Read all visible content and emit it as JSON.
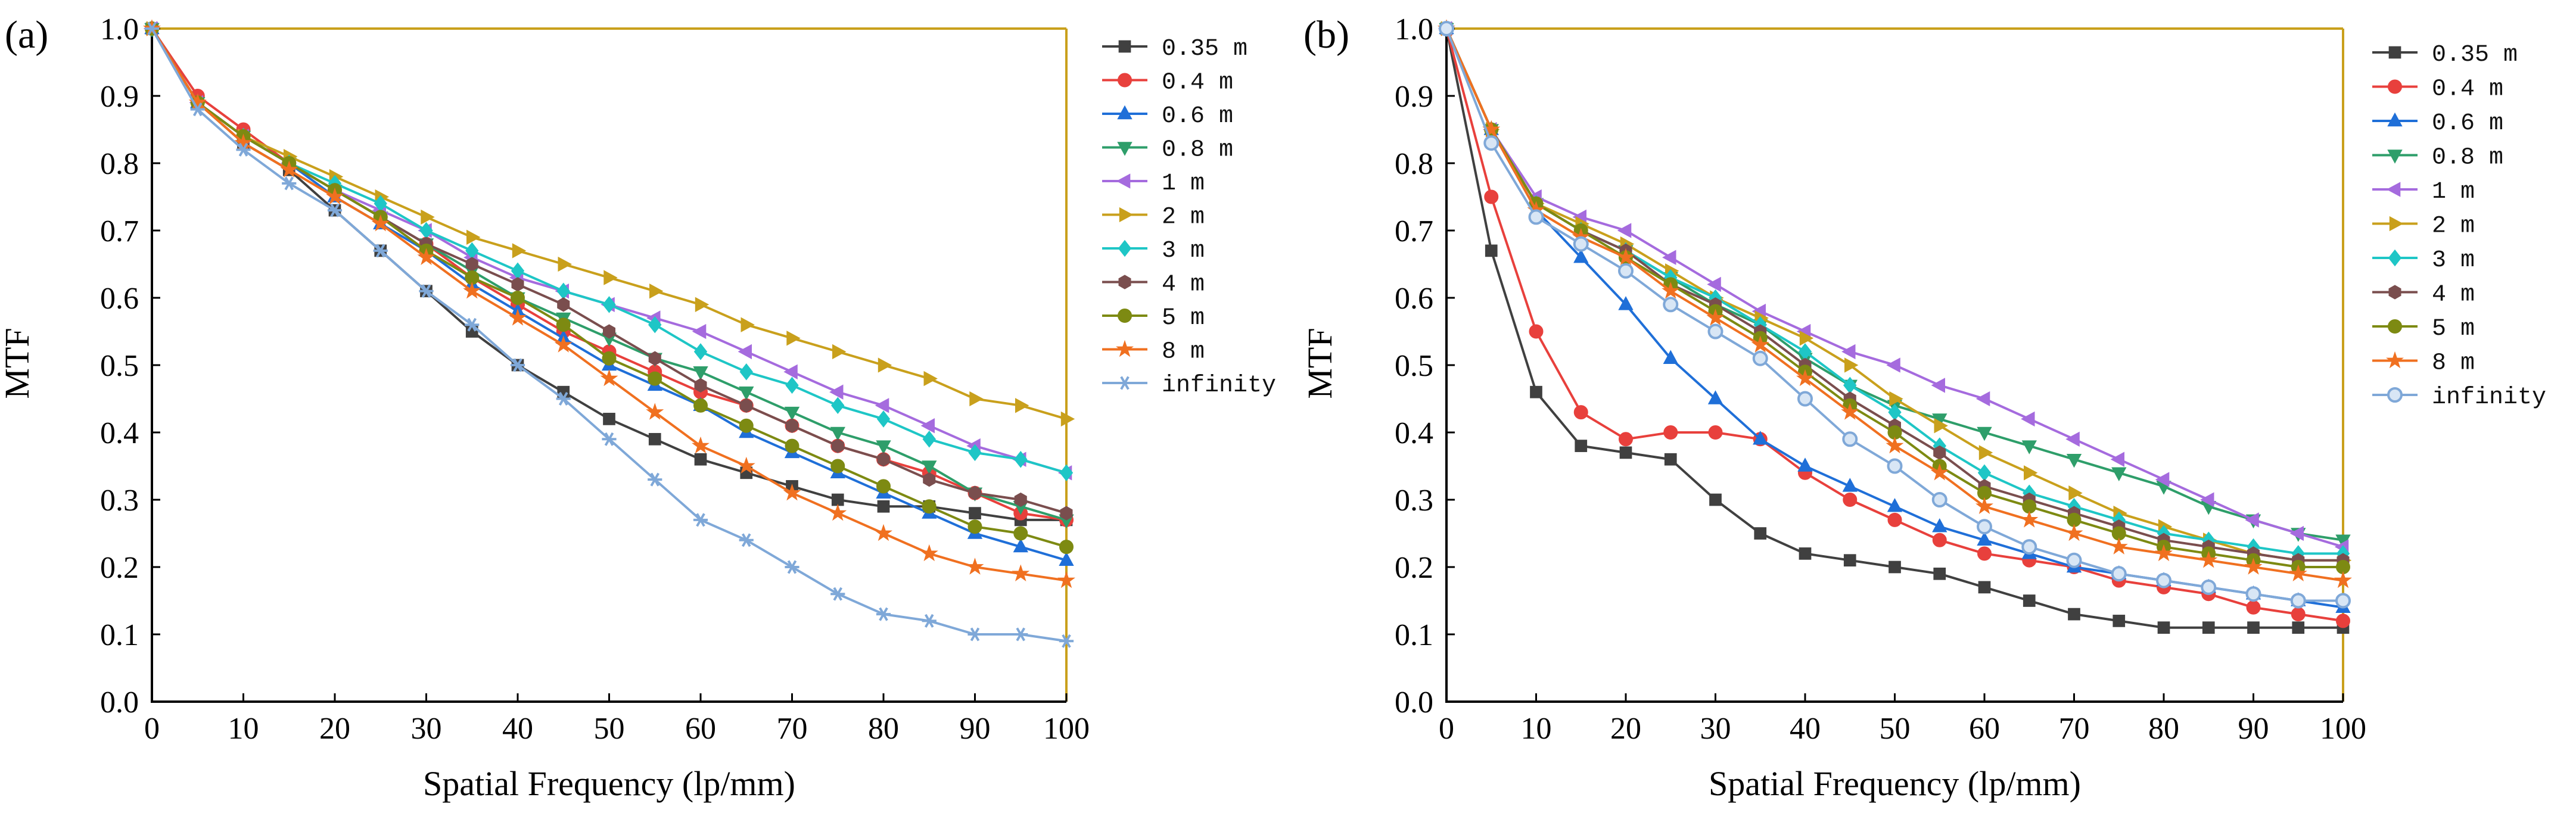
{
  "chart_data": [
    {
      "type": "line",
      "panel_label": "(a)",
      "xlabel": "Spatial Frequency (lp/mm)",
      "ylabel": "MTF",
      "xlim": [
        0,
        100
      ],
      "ylim": [
        0,
        1.0
      ],
      "x_ticks": [
        "0",
        "10",
        "20",
        "30",
        "40",
        "50",
        "60",
        "70",
        "80",
        "90",
        "100"
      ],
      "y_ticks": [
        "0.0",
        "0.1",
        "0.2",
        "0.3",
        "0.4",
        "0.5",
        "0.6",
        "0.7",
        "0.8",
        "0.9",
        "1.0"
      ],
      "grid": false,
      "legend_position": "outside-right",
      "x": [
        0,
        5,
        10,
        15,
        20,
        25,
        30,
        35,
        40,
        45,
        50,
        55,
        60,
        65,
        70,
        75,
        80,
        85,
        90,
        95,
        100
      ],
      "series": [
        {
          "name": "0.35 m",
          "color": "#404040",
          "marker": "square",
          "values": [
            1.0,
            0.89,
            0.83,
            0.79,
            0.73,
            0.67,
            0.61,
            0.55,
            0.5,
            0.46,
            0.42,
            0.39,
            0.36,
            0.34,
            0.32,
            0.3,
            0.29,
            0.29,
            0.28,
            0.27,
            0.27
          ]
        },
        {
          "name": "0.4 m",
          "color": "#e8403c",
          "marker": "circle",
          "values": [
            1.0,
            0.9,
            0.85,
            0.8,
            0.76,
            0.72,
            0.68,
            0.63,
            0.59,
            0.55,
            0.52,
            0.49,
            0.46,
            0.44,
            0.41,
            0.38,
            0.36,
            0.34,
            0.31,
            0.28,
            0.27
          ]
        },
        {
          "name": "0.6 m",
          "color": "#1f6fd8",
          "marker": "triangle-up",
          "values": [
            1.0,
            0.89,
            0.84,
            0.8,
            0.75,
            0.71,
            0.67,
            0.62,
            0.58,
            0.54,
            0.5,
            0.47,
            0.44,
            0.4,
            0.37,
            0.34,
            0.31,
            0.28,
            0.25,
            0.23,
            0.21
          ]
        },
        {
          "name": "0.8 m",
          "color": "#2e9e6a",
          "marker": "triangle-down",
          "values": [
            1.0,
            0.89,
            0.84,
            0.8,
            0.76,
            0.72,
            0.68,
            0.64,
            0.6,
            0.57,
            0.54,
            0.51,
            0.49,
            0.46,
            0.43,
            0.4,
            0.38,
            0.35,
            0.31,
            0.29,
            0.27
          ]
        },
        {
          "name": "1 m",
          "color": "#a56bde",
          "marker": "triangle-left",
          "values": [
            1.0,
            0.89,
            0.84,
            0.8,
            0.76,
            0.73,
            0.7,
            0.66,
            0.63,
            0.61,
            0.59,
            0.57,
            0.55,
            0.52,
            0.49,
            0.46,
            0.44,
            0.41,
            0.38,
            0.36,
            0.34
          ]
        },
        {
          "name": "2 m",
          "color": "#c9a01c",
          "marker": "triangle-right",
          "values": [
            1.0,
            0.89,
            0.84,
            0.81,
            0.78,
            0.75,
            0.72,
            0.69,
            0.67,
            0.65,
            0.63,
            0.61,
            0.59,
            0.56,
            0.54,
            0.52,
            0.5,
            0.48,
            0.45,
            0.44,
            0.42
          ]
        },
        {
          "name": "3 m",
          "color": "#1ec6c6",
          "marker": "diamond",
          "values": [
            1.0,
            0.89,
            0.84,
            0.8,
            0.77,
            0.74,
            0.7,
            0.67,
            0.64,
            0.61,
            0.59,
            0.56,
            0.52,
            0.49,
            0.47,
            0.44,
            0.42,
            0.39,
            0.37,
            0.36,
            0.34
          ]
        },
        {
          "name": "4 m",
          "color": "#7a4e4e",
          "marker": "hexagon",
          "values": [
            1.0,
            0.89,
            0.84,
            0.8,
            0.76,
            0.72,
            0.68,
            0.65,
            0.62,
            0.59,
            0.55,
            0.51,
            0.47,
            0.44,
            0.41,
            0.38,
            0.36,
            0.33,
            0.31,
            0.3,
            0.28
          ]
        },
        {
          "name": "5 m",
          "color": "#7d8a12",
          "marker": "circle",
          "values": [
            1.0,
            0.89,
            0.84,
            0.8,
            0.76,
            0.72,
            0.67,
            0.63,
            0.6,
            0.56,
            0.51,
            0.48,
            0.44,
            0.41,
            0.38,
            0.35,
            0.32,
            0.29,
            0.26,
            0.25,
            0.23
          ]
        },
        {
          "name": "8 m",
          "color": "#f07020",
          "marker": "star",
          "values": [
            1.0,
            0.89,
            0.83,
            0.79,
            0.75,
            0.71,
            0.66,
            0.61,
            0.57,
            0.53,
            0.48,
            0.43,
            0.38,
            0.35,
            0.31,
            0.28,
            0.25,
            0.22,
            0.2,
            0.19,
            0.18
          ]
        },
        {
          "name": "infinity",
          "color": "#7fa8d8",
          "marker": "asterisk",
          "values": [
            1.0,
            0.88,
            0.82,
            0.77,
            0.73,
            0.67,
            0.61,
            0.56,
            0.5,
            0.45,
            0.39,
            0.33,
            0.27,
            0.24,
            0.2,
            0.16,
            0.13,
            0.12,
            0.1,
            0.1,
            0.09
          ]
        }
      ]
    },
    {
      "type": "line",
      "panel_label": "(b)",
      "xlabel": "Spatial Frequency (lp/mm)",
      "ylabel": "MTF",
      "xlim": [
        0,
        100
      ],
      "ylim": [
        0,
        1.0
      ],
      "x_ticks": [
        "0",
        "10",
        "20",
        "30",
        "40",
        "50",
        "60",
        "70",
        "80",
        "90",
        "100"
      ],
      "y_ticks": [
        "0.0",
        "0.1",
        "0.2",
        "0.3",
        "0.4",
        "0.5",
        "0.6",
        "0.7",
        "0.8",
        "0.9",
        "1.0"
      ],
      "grid": false,
      "legend_position": "outside-right",
      "x": [
        0,
        5,
        10,
        15,
        20,
        25,
        30,
        35,
        40,
        45,
        50,
        55,
        60,
        65,
        70,
        75,
        80,
        85,
        90,
        95,
        100
      ],
      "series": [
        {
          "name": "0.35 m",
          "color": "#404040",
          "marker": "square",
          "values": [
            1.0,
            0.67,
            0.46,
            0.38,
            0.37,
            0.36,
            0.3,
            0.25,
            0.22,
            0.21,
            0.2,
            0.19,
            0.17,
            0.15,
            0.13,
            0.12,
            0.11,
            0.11,
            0.11,
            0.11,
            0.11
          ]
        },
        {
          "name": "0.4 m",
          "color": "#e8403c",
          "marker": "circle",
          "values": [
            1.0,
            0.75,
            0.55,
            0.43,
            0.39,
            0.4,
            0.4,
            0.39,
            0.34,
            0.3,
            0.27,
            0.24,
            0.22,
            0.21,
            0.2,
            0.18,
            0.17,
            0.16,
            0.14,
            0.13,
            0.12
          ]
        },
        {
          "name": "0.6 m",
          "color": "#1f6fd8",
          "marker": "triangle-up",
          "values": [
            1.0,
            0.85,
            0.73,
            0.66,
            0.59,
            0.51,
            0.45,
            0.39,
            0.35,
            0.32,
            0.29,
            0.26,
            0.24,
            0.22,
            0.2,
            0.19,
            0.18,
            0.17,
            0.16,
            0.15,
            0.14
          ]
        },
        {
          "name": "0.8 m",
          "color": "#2e9e6a",
          "marker": "triangle-down",
          "values": [
            1.0,
            0.85,
            0.74,
            0.7,
            0.67,
            0.63,
            0.59,
            0.56,
            0.51,
            0.47,
            0.44,
            0.42,
            0.4,
            0.38,
            0.36,
            0.34,
            0.32,
            0.29,
            0.27,
            0.25,
            0.24
          ]
        },
        {
          "name": "1 m",
          "color": "#a56bde",
          "marker": "triangle-left",
          "values": [
            1.0,
            0.85,
            0.75,
            0.72,
            0.7,
            0.66,
            0.62,
            0.58,
            0.55,
            0.52,
            0.5,
            0.47,
            0.45,
            0.42,
            0.39,
            0.36,
            0.33,
            0.3,
            0.27,
            0.25,
            0.23
          ]
        },
        {
          "name": "2 m",
          "color": "#c9a01c",
          "marker": "triangle-right",
          "values": [
            1.0,
            0.85,
            0.74,
            0.71,
            0.68,
            0.64,
            0.6,
            0.57,
            0.54,
            0.5,
            0.45,
            0.41,
            0.37,
            0.34,
            0.31,
            0.28,
            0.26,
            0.24,
            0.22,
            0.21,
            0.21
          ]
        },
        {
          "name": "3 m",
          "color": "#1ec6c6",
          "marker": "diamond",
          "values": [
            1.0,
            0.85,
            0.74,
            0.7,
            0.67,
            0.63,
            0.6,
            0.56,
            0.52,
            0.47,
            0.43,
            0.38,
            0.34,
            0.31,
            0.29,
            0.27,
            0.25,
            0.24,
            0.23,
            0.22,
            0.22
          ]
        },
        {
          "name": "4 m",
          "color": "#7a4e4e",
          "marker": "hexagon",
          "values": [
            1.0,
            0.85,
            0.74,
            0.7,
            0.67,
            0.62,
            0.59,
            0.55,
            0.5,
            0.45,
            0.41,
            0.37,
            0.32,
            0.3,
            0.28,
            0.26,
            0.24,
            0.23,
            0.22,
            0.21,
            0.21
          ]
        },
        {
          "name": "5 m",
          "color": "#7d8a12",
          "marker": "circle",
          "values": [
            1.0,
            0.85,
            0.74,
            0.7,
            0.66,
            0.62,
            0.58,
            0.54,
            0.49,
            0.44,
            0.4,
            0.35,
            0.31,
            0.29,
            0.27,
            0.25,
            0.23,
            0.22,
            0.21,
            0.2,
            0.2
          ]
        },
        {
          "name": "8 m",
          "color": "#f07020",
          "marker": "star",
          "values": [
            1.0,
            0.85,
            0.73,
            0.69,
            0.66,
            0.61,
            0.57,
            0.53,
            0.48,
            0.43,
            0.38,
            0.34,
            0.29,
            0.27,
            0.25,
            0.23,
            0.22,
            0.21,
            0.2,
            0.19,
            0.18
          ]
        },
        {
          "name": "infinity",
          "color": "#7fa8d8",
          "marker": "circle-halved",
          "values": [
            1.0,
            0.83,
            0.72,
            0.68,
            0.64,
            0.59,
            0.55,
            0.51,
            0.45,
            0.39,
            0.35,
            0.3,
            0.26,
            0.23,
            0.21,
            0.19,
            0.18,
            0.17,
            0.16,
            0.15,
            0.15
          ]
        }
      ]
    }
  ]
}
